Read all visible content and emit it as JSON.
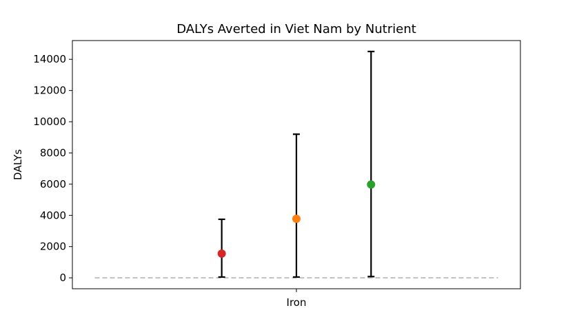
{
  "chart_data": {
    "type": "scatter",
    "title": "DALYs Averted in Viet Nam by Nutrient",
    "xlabel": "",
    "ylabel": "DALYs",
    "categories": [
      "Iron"
    ],
    "ylim": [
      -700,
      15200
    ],
    "yticks": [
      0,
      2000,
      4000,
      6000,
      8000,
      10000,
      12000,
      14000
    ],
    "ytick_labels": [
      "0",
      "2000",
      "4000",
      "6000",
      "8000",
      "10000",
      "12000",
      "14000"
    ],
    "reference_line": {
      "y": 0,
      "style": "dashed",
      "color": "#c0c0c0"
    },
    "grid": false,
    "legend": "none",
    "points": [
      {
        "x": -0.5,
        "value": 1550,
        "lower": 50,
        "upper": 3750,
        "color": "#d62728"
      },
      {
        "x": 0.0,
        "value": 3780,
        "lower": 50,
        "upper": 9200,
        "color": "#ff7f0e"
      },
      {
        "x": 0.5,
        "value": 5980,
        "lower": 80,
        "upper": 14500,
        "color": "#2ca02c"
      }
    ],
    "xlim": [
      -1.5,
      1.5
    ]
  }
}
